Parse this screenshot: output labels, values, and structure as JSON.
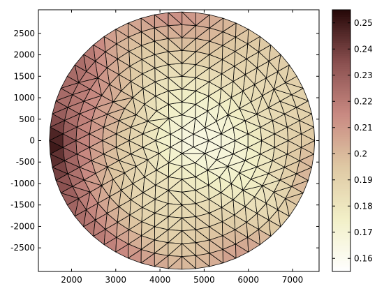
{
  "chart_data": {
    "type": "heatmap",
    "subtype": "triangular-mesh-patch",
    "title": "",
    "xlabel": "",
    "ylabel": "",
    "xlim": [
      1250,
      7600
    ],
    "ylim": [
      -3050,
      3050
    ],
    "x_ticks": [
      2000,
      3000,
      4000,
      5000,
      6000,
      7000
    ],
    "y_ticks": [
      2500,
      2000,
      1500,
      1000,
      500,
      0,
      -500,
      -1000,
      -1500,
      -2000,
      -2500
    ],
    "domain": {
      "shape": "disk",
      "center": [
        4500,
        0
      ],
      "radius": 3000
    },
    "mesh": {
      "rings": 10
    },
    "field": {
      "description_of_values": "scalar value per triangle",
      "min_location": [
        4600,
        0
      ],
      "min_value": 0.155,
      "max_location": [
        1600,
        0
      ],
      "max_value": 0.253
    },
    "colorbar": {
      "ticks": [
        0.16,
        0.17,
        0.18,
        0.19,
        0.2,
        0.21,
        0.22,
        0.23,
        0.24,
        0.25
      ],
      "tick_labels": [
        "0.16",
        "0.17",
        "0.18",
        "0.19",
        "0.2",
        "0.21",
        "0.22",
        "0.23",
        "0.24",
        "0.25"
      ],
      "range": [
        0.155,
        0.255
      ],
      "colormap": "pink-reversed",
      "color_stops": [
        {
          "value": 0.155,
          "color": "#ffffff"
        },
        {
          "value": 0.175,
          "color": "#f2f0c8"
        },
        {
          "value": 0.195,
          "color": "#dfc9a4"
        },
        {
          "value": 0.215,
          "color": "#c98a82"
        },
        {
          "value": 0.235,
          "color": "#8a5050"
        },
        {
          "value": 0.255,
          "color": "#260808"
        }
      ]
    }
  }
}
